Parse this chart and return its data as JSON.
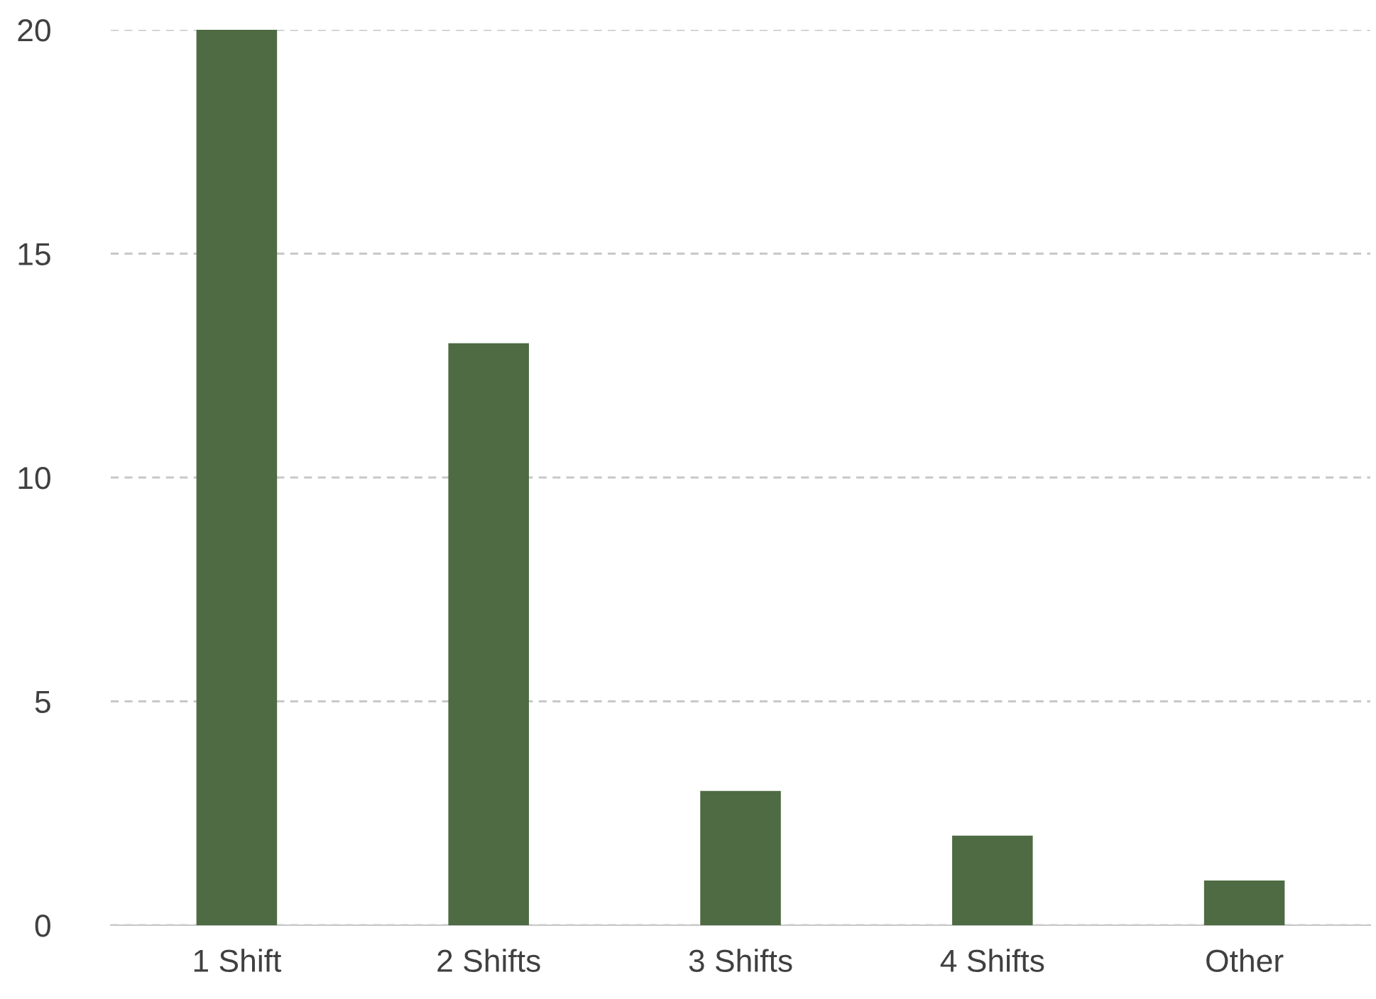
{
  "chart_data": {
    "type": "bar",
    "categories": [
      "1 Shift",
      "2 Shifts",
      "3 Shifts",
      "4 Shifts",
      "Other"
    ],
    "values": [
      20,
      13,
      3,
      2,
      1
    ],
    "color": "#4e6b43",
    "ylim": [
      0,
      20
    ],
    "yticks": [
      0,
      5,
      10,
      15,
      20
    ],
    "grid": "y",
    "legend": false
  }
}
